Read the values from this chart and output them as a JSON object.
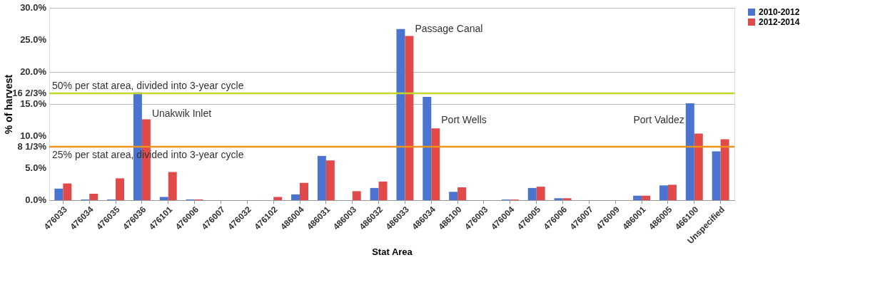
{
  "chart_data": {
    "type": "bar",
    "xlabel": "Stat Area",
    "ylabel": "% of harvest",
    "categories": [
      "476033",
      "476034",
      "476035",
      "476036",
      "476101",
      "476006",
      "476007",
      "476032",
      "476102",
      "486004",
      "486031",
      "486003",
      "486032",
      "486033",
      "486034",
      "486100",
      "476003",
      "476004",
      "476005",
      "476006",
      "476007",
      "476009",
      "486001",
      "486005",
      "466100",
      "Unspecified"
    ],
    "series": [
      {
        "name": "2010-2012",
        "color": "#4a74d0",
        "values": [
          1.8,
          0.1,
          0.1,
          16.8,
          0.5,
          0.1,
          0,
          0,
          0,
          0.9,
          6.9,
          0,
          1.9,
          26.7,
          16.1,
          1.3,
          0,
          0.1,
          1.9,
          0.3,
          0,
          0,
          0.7,
          2.3,
          15.1,
          7.6
        ]
      },
      {
        "name": "2012-2014",
        "color": "#e04a4a",
        "values": [
          2.6,
          1.0,
          3.4,
          12.6,
          4.4,
          0.1,
          0,
          0,
          0.5,
          2.7,
          6.2,
          1.4,
          2.9,
          25.6,
          11.2,
          2.0,
          0,
          0.1,
          2.1,
          0.3,
          0,
          0,
          0.7,
          2.4,
          10.4,
          9.5
        ]
      }
    ],
    "ylim": [
      0,
      30
    ],
    "yticks": [
      {
        "value": 0,
        "label": "0.0%"
      },
      {
        "value": 5,
        "label": "5.0%"
      },
      {
        "value": 8.333,
        "label": "8 1/3%"
      },
      {
        "value": 10,
        "label": "10.0%"
      },
      {
        "value": 15,
        "label": "15.0%"
      },
      {
        "value": 16.667,
        "label": "16 2/3%"
      },
      {
        "value": 20,
        "label": "20.0%"
      },
      {
        "value": 25,
        "label": "25.0%"
      },
      {
        "value": 30,
        "label": "30.0%"
      }
    ],
    "ref_lines": [
      {
        "axis": "y",
        "value": 16.667,
        "label": "50% per stat area, divided into 3-year cycle",
        "color": "#c3d62e"
      },
      {
        "axis": "y",
        "value": 8.333,
        "label": "25% per stat area, divided into 3-year cycle",
        "color": "#f0931c"
      }
    ],
    "annotations": [
      {
        "text": "Unakwik Inlet",
        "x": "476036",
        "y": 13.5
      },
      {
        "text": "Passage Canal",
        "x": "486033",
        "y": 26.7
      },
      {
        "text": "Port Wells",
        "x": "486034",
        "y": 12.4
      },
      {
        "text": "Port Valdez",
        "x": "466100",
        "y": 12.4
      }
    ],
    "grid": "y",
    "legend": "right"
  }
}
